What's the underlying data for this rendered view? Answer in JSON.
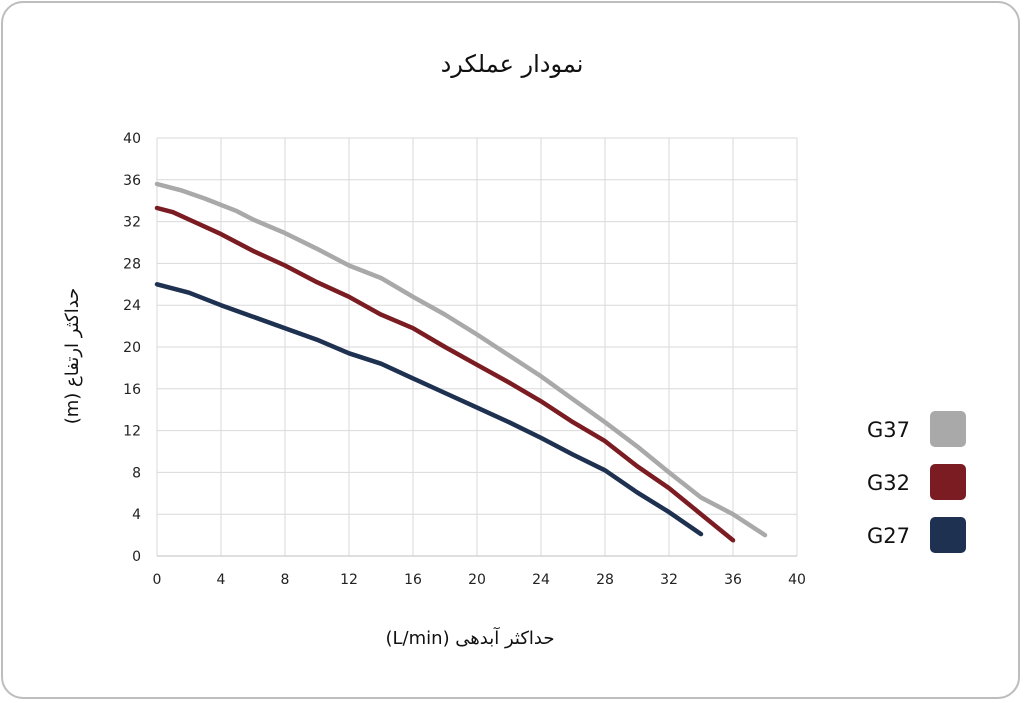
{
  "chart_data": {
    "type": "line",
    "title": "نمودار عملکرد",
    "xlabel": "حداکثر آبدهی (L/min)",
    "ylabel": "حداکثر ارتفاع (m)",
    "xlim": [
      0,
      40
    ],
    "ylim": [
      0,
      40
    ],
    "xticks": [
      0,
      4,
      8,
      12,
      16,
      20,
      24,
      28,
      32,
      36,
      40
    ],
    "yticks": [
      0,
      4,
      8,
      12,
      16,
      20,
      24,
      28,
      32,
      36,
      40
    ],
    "grid": true,
    "legend_position": "right",
    "series": [
      {
        "name": "G37",
        "color": "#a9a9a9",
        "x": [
          0,
          1.5,
          3,
          5,
          6,
          8,
          10,
          12,
          14,
          16,
          18,
          20,
          22,
          24,
          26,
          28,
          30,
          32,
          34,
          36,
          38
        ],
        "y": [
          35.6,
          35.0,
          34.2,
          33.0,
          32.2,
          30.9,
          29.4,
          27.8,
          26.6,
          24.8,
          23.1,
          21.2,
          19.2,
          17.2,
          15.0,
          12.8,
          10.5,
          8.0,
          5.6,
          4.0,
          2.0
        ]
      },
      {
        "name": "G32",
        "color": "#7a1c22",
        "x": [
          0,
          1,
          2,
          4,
          6,
          8,
          10,
          12,
          14,
          16,
          18,
          20,
          22,
          24,
          26,
          28,
          30,
          32,
          34,
          36
        ],
        "y": [
          33.3,
          32.9,
          32.2,
          30.8,
          29.2,
          27.8,
          26.2,
          24.8,
          23.1,
          21.8,
          20.0,
          18.3,
          16.6,
          14.8,
          12.8,
          11.0,
          8.6,
          6.5,
          4.0,
          1.5
        ]
      },
      {
        "name": "G27",
        "color": "#1e3150",
        "x": [
          0,
          2,
          4,
          6,
          8,
          10,
          12,
          14,
          16,
          18,
          20,
          22,
          24,
          26,
          28,
          30,
          32,
          34
        ],
        "y": [
          26.0,
          25.2,
          24.0,
          22.9,
          21.8,
          20.7,
          19.4,
          18.4,
          17.0,
          15.6,
          14.2,
          12.8,
          11.3,
          9.7,
          8.2,
          6.1,
          4.2,
          2.1
        ]
      }
    ]
  },
  "legend": [
    {
      "label": "G37",
      "color": "#a9a9a9"
    },
    {
      "label": "G32",
      "color": "#7a1c22"
    },
    {
      "label": "G27",
      "color": "#1e3150"
    }
  ]
}
